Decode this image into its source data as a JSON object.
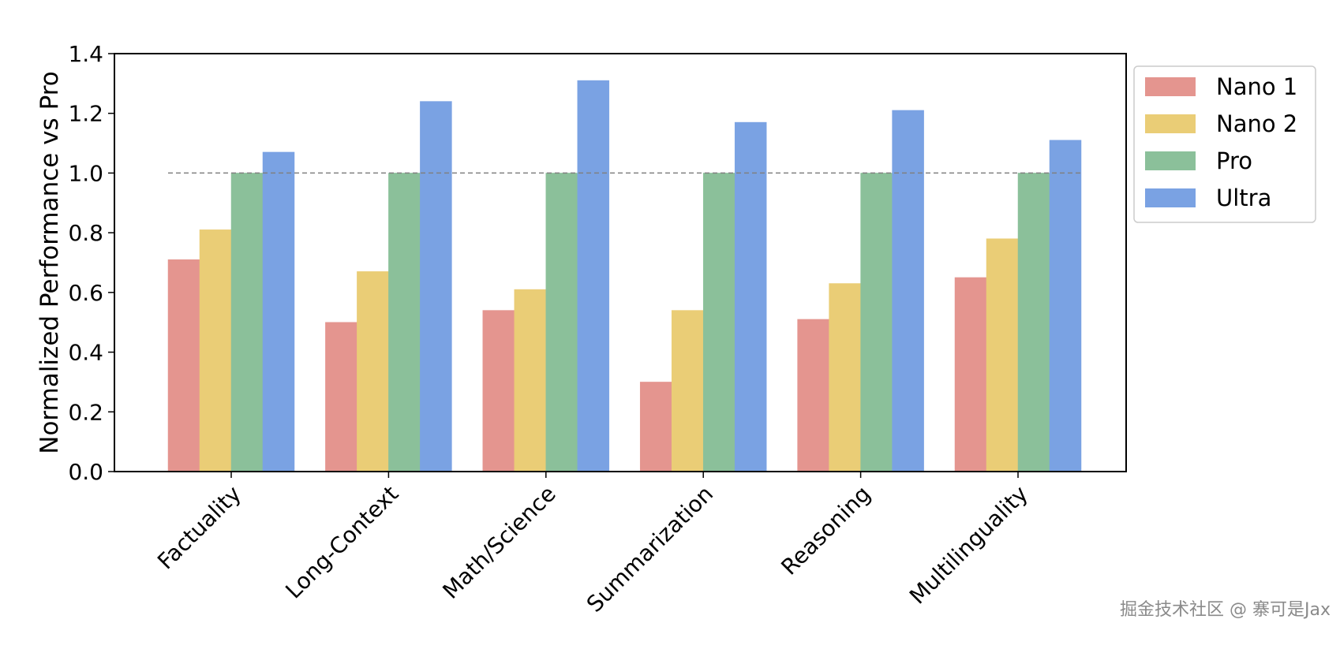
{
  "chart_data": {
    "type": "bar",
    "categories": [
      "Factuality",
      "Long-Context",
      "Math/Science",
      "Summarization",
      "Reasoning",
      "Multilinguality"
    ],
    "series": [
      {
        "name": "Nano 1",
        "color": "#e4958f",
        "values": [
          0.71,
          0.5,
          0.54,
          0.3,
          0.51,
          0.65
        ]
      },
      {
        "name": "Nano 2",
        "color": "#eacd76",
        "values": [
          0.81,
          0.67,
          0.61,
          0.54,
          0.63,
          0.78
        ]
      },
      {
        "name": "Pro",
        "color": "#8bc09a",
        "values": [
          1.0,
          1.0,
          1.0,
          1.0,
          1.0,
          1.0
        ]
      },
      {
        "name": "Ultra",
        "color": "#7aa2e3",
        "values": [
          1.07,
          1.24,
          1.31,
          1.17,
          1.21,
          1.11
        ]
      }
    ],
    "title": "",
    "xlabel": "",
    "ylabel": "Normalized Performance vs Pro",
    "ylim": [
      0,
      1.4
    ],
    "yticks": [
      "0.0",
      "0.2",
      "0.4",
      "0.6",
      "0.8",
      "1.0",
      "1.2",
      "1.4"
    ],
    "reference_line": 1.0,
    "grid": false,
    "legend_position": "upper-right-outside"
  },
  "watermark": "掘金技术社区 @ 寨可是Jax"
}
